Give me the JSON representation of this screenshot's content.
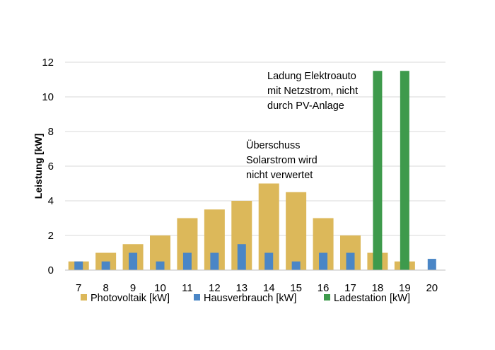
{
  "chart_data": {
    "type": "bar",
    "title": "",
    "xlabel": "",
    "ylabel": "Leistung [kW]",
    "ylim": [
      0,
      12
    ],
    "yticks": [
      0,
      2,
      4,
      6,
      8,
      10,
      12
    ],
    "grid": true,
    "legend_position": "bottom",
    "categories": [
      "7",
      "8",
      "9",
      "10",
      "11",
      "12",
      "13",
      "14",
      "15",
      "16",
      "17",
      "18",
      "19",
      "20"
    ],
    "series": [
      {
        "name": "Photovoltaik [kW]",
        "color": "#dcb85a",
        "values": [
          0.5,
          1.0,
          1.5,
          2.0,
          3.0,
          3.5,
          4.0,
          5.0,
          4.5,
          3.0,
          2.0,
          1.0,
          0.5,
          0
        ]
      },
      {
        "name": "Hausverbrauch [kW]",
        "color": "#4a86c6",
        "values": [
          0.5,
          0.5,
          1.0,
          0.5,
          1.0,
          1.0,
          1.5,
          1.0,
          0.5,
          1.0,
          1.0,
          0.5,
          0.5,
          0.65
        ]
      },
      {
        "name": "Ladestation [kW]",
        "color": "#3e9a4c",
        "values": [
          0,
          0,
          0,
          0,
          0,
          0,
          0,
          0,
          0,
          0,
          0,
          11.5,
          11.5,
          0
        ]
      }
    ],
    "annotations": [
      {
        "lines": [
          "Ladung Elektroauto",
          "mit Netzstrom, nicht",
          "durch PV-Anlage"
        ]
      },
      {
        "lines": [
          "Überschuss",
          "Solarstrom wird",
          "nicht verwertet"
        ]
      }
    ]
  }
}
